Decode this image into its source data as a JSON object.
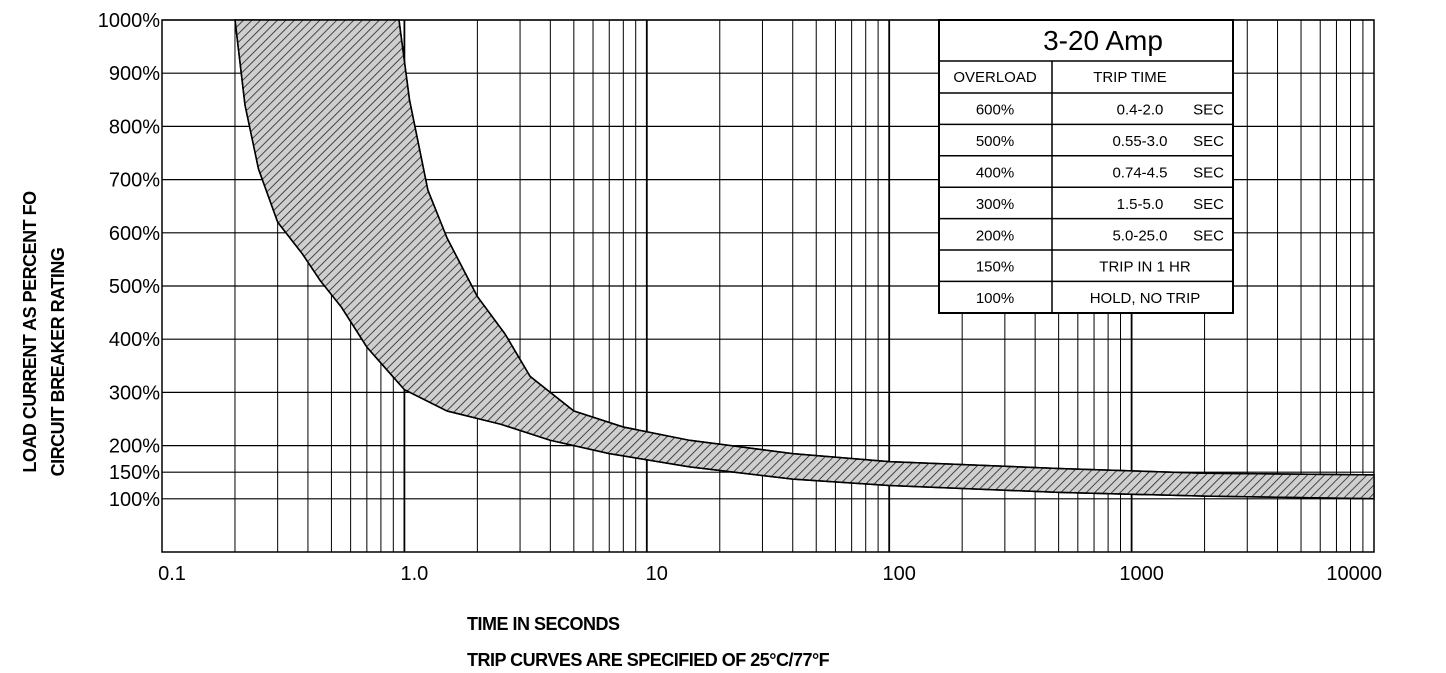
{
  "chart_data": {
    "type": "area",
    "x_scale": "log",
    "y_scale": "linear",
    "xlim": [
      0.1,
      10000
    ],
    "ylim": [
      0,
      1000
    ],
    "grid": true,
    "x_ticks": [
      {
        "value": 0.1,
        "label": "0.1"
      },
      {
        "value": 1,
        "label": "1.0"
      },
      {
        "value": 10,
        "label": "10"
      },
      {
        "value": 100,
        "label": "100"
      },
      {
        "value": 1000,
        "label": "1000"
      },
      {
        "value": 10000,
        "label": "10000"
      }
    ],
    "y_ticks": [
      {
        "value": 1000,
        "label": "1000%"
      },
      {
        "value": 900,
        "label": "900%"
      },
      {
        "value": 800,
        "label": "800%"
      },
      {
        "value": 700,
        "label": "700%"
      },
      {
        "value": 600,
        "label": "600%"
      },
      {
        "value": 500,
        "label": "500%"
      },
      {
        "value": 400,
        "label": "400%"
      },
      {
        "value": 300,
        "label": "300%"
      },
      {
        "value": 200,
        "label": "200%"
      },
      {
        "value": 150,
        "label": "150%"
      },
      {
        "value": 100,
        "label": "100%"
      }
    ],
    "ylabel_line1": "LOAD CURRENT AS PERCENT FO",
    "ylabel_line2": "CIRCUIT BREAKER RATING",
    "xlabel": "TIME IN SECONDS",
    "note": "TRIP CURVES ARE SPECIFIED OF 25°C/77°F",
    "band": {
      "fill_pattern": "diagonal-hatch",
      "lower_edge": [
        {
          "x": 0.2,
          "y": 1000
        },
        {
          "x": 0.22,
          "y": 840
        },
        {
          "x": 0.25,
          "y": 720
        },
        {
          "x": 0.3,
          "y": 620
        },
        {
          "x": 0.38,
          "y": 560
        },
        {
          "x": 0.45,
          "y": 510
        },
        {
          "x": 0.55,
          "y": 460
        },
        {
          "x": 0.7,
          "y": 385
        },
        {
          "x": 1.0,
          "y": 305
        },
        {
          "x": 1.5,
          "y": 265
        },
        {
          "x": 2.5,
          "y": 240
        },
        {
          "x": 4,
          "y": 210
        },
        {
          "x": 7,
          "y": 185
        },
        {
          "x": 15,
          "y": 160
        },
        {
          "x": 40,
          "y": 137
        },
        {
          "x": 100,
          "y": 125
        },
        {
          "x": 500,
          "y": 112
        },
        {
          "x": 2000,
          "y": 105
        },
        {
          "x": 10000,
          "y": 100
        }
      ],
      "upper_edge": [
        {
          "x": 10000,
          "y": 145
        },
        {
          "x": 2000,
          "y": 148
        },
        {
          "x": 500,
          "y": 157
        },
        {
          "x": 100,
          "y": 170
        },
        {
          "x": 40,
          "y": 185
        },
        {
          "x": 15,
          "y": 210
        },
        {
          "x": 8,
          "y": 235
        },
        {
          "x": 5,
          "y": 265
        },
        {
          "x": 3.3,
          "y": 330
        },
        {
          "x": 2.6,
          "y": 410
        },
        {
          "x": 2.0,
          "y": 480
        },
        {
          "x": 1.5,
          "y": 590
        },
        {
          "x": 1.25,
          "y": 680
        },
        {
          "x": 1.05,
          "y": 850
        },
        {
          "x": 0.95,
          "y": 1000
        }
      ]
    },
    "table": {
      "title": "3-20 Amp",
      "headers": [
        "OVERLOAD",
        "TRIP TIME"
      ],
      "rows": [
        {
          "overload": "600%",
          "trip_time": "0.4-2.0",
          "unit": "SEC"
        },
        {
          "overload": "500%",
          "trip_time": "0.55-3.0",
          "unit": "SEC"
        },
        {
          "overload": "400%",
          "trip_time": "0.74-4.5",
          "unit": "SEC"
        },
        {
          "overload": "300%",
          "trip_time": "1.5-5.0",
          "unit": "SEC"
        },
        {
          "overload": "200%",
          "trip_time": "5.0-25.0",
          "unit": "SEC"
        },
        {
          "overload": "150%",
          "trip_time": "TRIP IN  1 HR",
          "unit": ""
        },
        {
          "overload": "100%",
          "trip_time": "HOLD, NO TRIP",
          "unit": ""
        }
      ]
    }
  }
}
